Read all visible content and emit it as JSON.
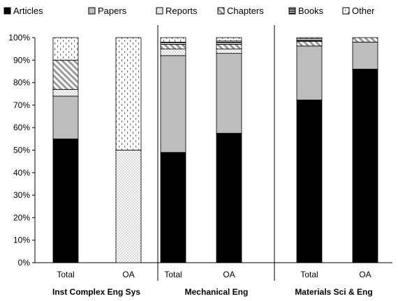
{
  "chart_data": {
    "type": "bar",
    "stacked": true,
    "percent": true,
    "ylim": [
      0,
      100
    ],
    "yticks": [
      "0%",
      "10%",
      "20%",
      "30%",
      "40%",
      "50%",
      "60%",
      "70%",
      "80%",
      "90%",
      "100%"
    ],
    "grid": false,
    "legend_position": "top",
    "categories": [
      "Total",
      "OA",
      "Total",
      "OA",
      "Total",
      "OA"
    ],
    "groups": [
      {
        "label": "Inst Complex Eng Sys",
        "categories": [
          0,
          1
        ]
      },
      {
        "label": "Mechanical Eng",
        "categories": [
          2,
          3
        ]
      },
      {
        "label": "Materials Sci & Eng",
        "categories": [
          4,
          5
        ]
      }
    ],
    "series": [
      {
        "name": "Articles",
        "pattern": "solid-black",
        "values": [
          55,
          0,
          49,
          57.5,
          72.3,
          86
        ]
      },
      {
        "name": "Papers",
        "pattern": "solid-gray",
        "values": [
          19,
          0,
          43,
          35.5,
          24,
          12
        ]
      },
      {
        "name": "Reports",
        "pattern": "dots",
        "values": [
          3,
          50,
          3,
          2,
          0,
          0
        ]
      },
      {
        "name": "Chapters",
        "pattern": "diagonal",
        "values": [
          13,
          0,
          2,
          2,
          2,
          2
        ]
      },
      {
        "name": "Books",
        "pattern": "horizontal",
        "values": [
          0,
          0,
          1,
          1.5,
          1.2,
          0
        ]
      },
      {
        "name": "Other",
        "pattern": "dashes",
        "values": [
          10,
          50,
          2,
          1.5,
          0.5,
          0
        ]
      }
    ]
  }
}
